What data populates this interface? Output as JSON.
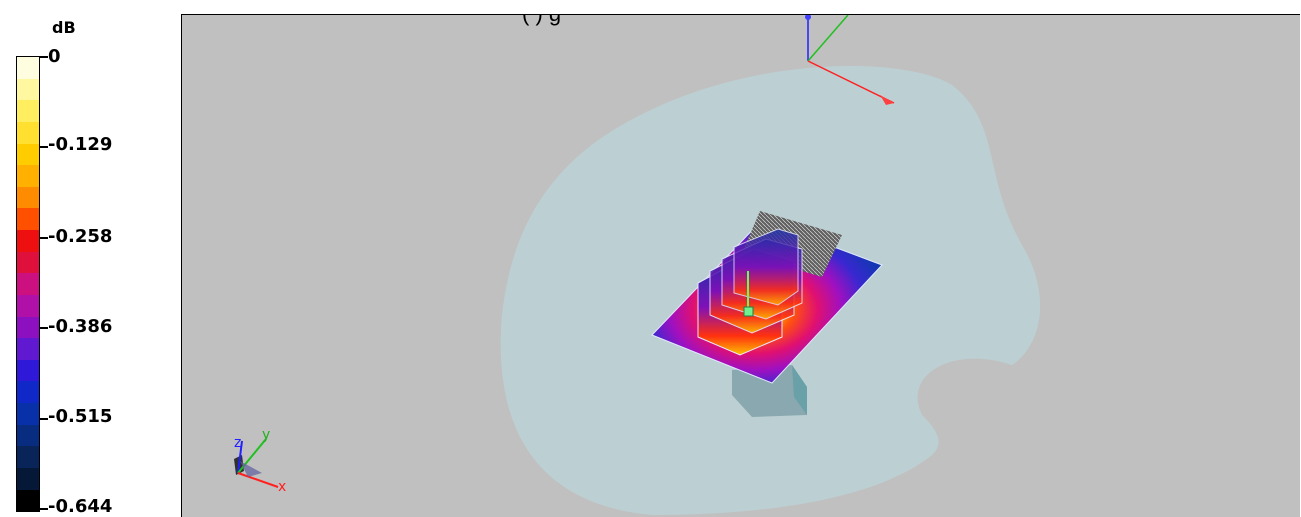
{
  "legend": {
    "unit": "dB",
    "ticks": [
      "0",
      "-0.129",
      "-0.258",
      "-0.386",
      "-0.515",
      "-0.644"
    ],
    "colors": [
      "#fffde0",
      "#fff8a0",
      "#ffee60",
      "#ffe030",
      "#ffcc00",
      "#ffb000",
      "#ff8c00",
      "#ff5000",
      "#ee1010",
      "#e0103c",
      "#cc1080",
      "#b010a8",
      "#8c10c0",
      "#6018d0",
      "#3018d8",
      "#1028c8",
      "#0830a8",
      "#082c80",
      "#082458",
      "#061838",
      "#000000"
    ]
  },
  "viewport": {
    "caption": "(                )                         g",
    "background": "#c0c0c0",
    "ground_color": "#bcd0d4",
    "axis_labels": {
      "x": "x",
      "y": "y",
      "z": "z"
    },
    "icons": [
      "axis-triad-icon",
      "orientation-axes-icon"
    ]
  }
}
